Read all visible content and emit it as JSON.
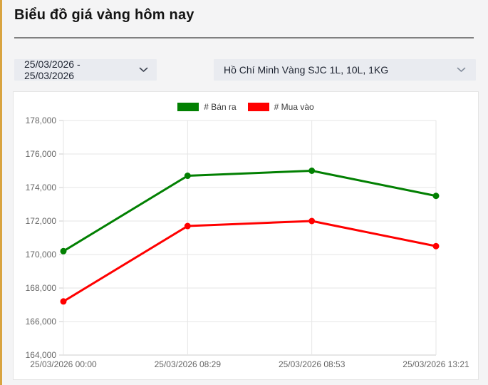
{
  "header": {
    "title": "Biểu đồ giá vàng hôm nay"
  },
  "filters": {
    "date_range": {
      "value": "25/03/2026 - 25/03/2026"
    },
    "product": {
      "value": "Hồ Chí Minh Vàng SJC 1L, 10L, 1KG"
    }
  },
  "chart_data": {
    "type": "line",
    "categories": [
      "25/03/2026 00:00",
      "25/03/2026 08:29",
      "25/03/2026 08:53",
      "25/03/2026 13:21"
    ],
    "series": [
      {
        "name": "# Bán ra",
        "color": "#028002",
        "values": [
          170200,
          174700,
          175000,
          173500
        ]
      },
      {
        "name": "# Mua vào",
        "color": "#ff0000",
        "values": [
          167200,
          171700,
          172000,
          170500
        ]
      }
    ],
    "ylim": [
      164000,
      178000
    ],
    "y_step": 2000,
    "grid": true,
    "legend_position": "top",
    "colors": {
      "gridline": "#e6e6e6",
      "axis": "#cccccc",
      "axis_label": "#666666"
    }
  }
}
